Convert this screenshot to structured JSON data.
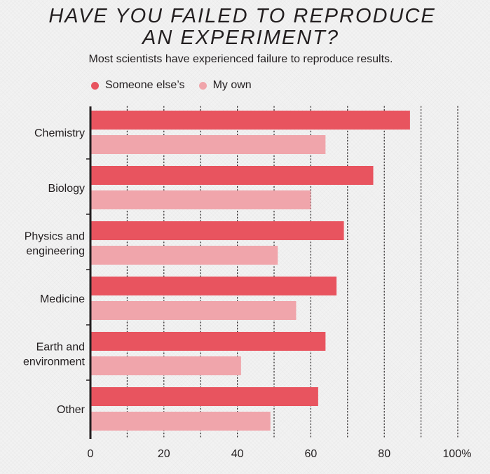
{
  "title_lines": [
    "HAVE YOU FAILED TO REPRODUCE",
    "AN EXPERIMENT?"
  ],
  "subtitle": "Most scientists have experienced failure to reproduce results.",
  "colors": {
    "someone_else": "#e8545f",
    "my_own": "#f0a5ab",
    "axis": "#231f20",
    "grid": "#231f20",
    "background": "#f2f2f2"
  },
  "chart_data": {
    "type": "bar",
    "orientation": "horizontal",
    "title": "HAVE YOU FAILED TO REPRODUCE AN EXPERIMENT?",
    "subtitle": "Most scientists have experienced failure to reproduce results.",
    "categories": [
      [
        "Chemistry"
      ],
      [
        "Biology"
      ],
      [
        "Physics and",
        "engineering"
      ],
      [
        "Medicine"
      ],
      [
        "Earth and",
        "environment"
      ],
      [
        "Other"
      ]
    ],
    "series": [
      {
        "name": "Someone else’s",
        "values": [
          87,
          77,
          69,
          67,
          64,
          62
        ]
      },
      {
        "name": "My own",
        "values": [
          64,
          60,
          51,
          56,
          41,
          49
        ]
      }
    ],
    "xlim": [
      0,
      100
    ],
    "ticks": [
      0,
      20,
      40,
      60,
      80,
      100
    ],
    "tick_labels": [
      "0",
      "20",
      "40",
      "60",
      "80",
      "100%"
    ],
    "grid": "dotted vertical every 10",
    "legend_position": "top-left"
  }
}
